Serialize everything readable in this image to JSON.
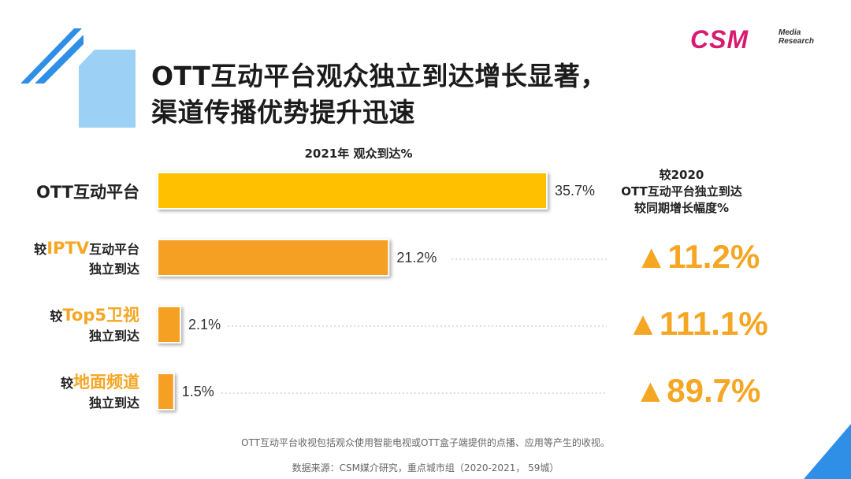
{
  "header": {
    "title_line1": "OTT互动平台观众独立到达增长显著，",
    "title_line2": "渠道传播优势提升迅速"
  },
  "logo": {
    "brand": "CSM",
    "sub_line1": "Media",
    "sub_line2": "Research"
  },
  "chart_data": {
    "type": "bar",
    "orientation": "horizontal",
    "title": "2021年 观众到达%",
    "categories": [
      {
        "prefix": "",
        "highlight": "OTT互动平台",
        "suffix": "",
        "line2": ""
      },
      {
        "prefix": "较",
        "highlight": "IPTV",
        "suffix": "互动平台",
        "line2": "独立到达"
      },
      {
        "prefix": "较",
        "highlight": "Top5卫视",
        "suffix": "",
        "line2": "独立到达"
      },
      {
        "prefix": "较",
        "highlight": "地面频道",
        "suffix": "",
        "line2": "独立到达"
      }
    ],
    "values": [
      35.7,
      21.2,
      2.1,
      1.5
    ],
    "value_labels": [
      "35.7%",
      "21.2%",
      "2.1%",
      "1.5%"
    ],
    "xlim": [
      0,
      35.7
    ],
    "bar_colors": [
      "#ffc000",
      "#f5a023",
      "#f5a023",
      "#f5a023"
    ],
    "right_header": [
      "较2020",
      "OTT互动平台独立到达",
      "较同期增长幅度%"
    ],
    "growth_labels": [
      "",
      "▲11.2%",
      "▲111.1%",
      "▲89.7%"
    ]
  },
  "footnote": "OTT互动平台收视包括观众使用智能电视或OTT盒子端提供的点播、应用等产生的收视。",
  "source": "数据来源：CSM媒介研究，重点城市组（2020-2021， 59城）",
  "colors": {
    "accent_orange": "#f5a623",
    "accent_yellow": "#ffc000",
    "brand_pink": "#d81b70",
    "deco_blue": "#2f8fe6",
    "deco_light_blue": "#9cd0f5"
  }
}
